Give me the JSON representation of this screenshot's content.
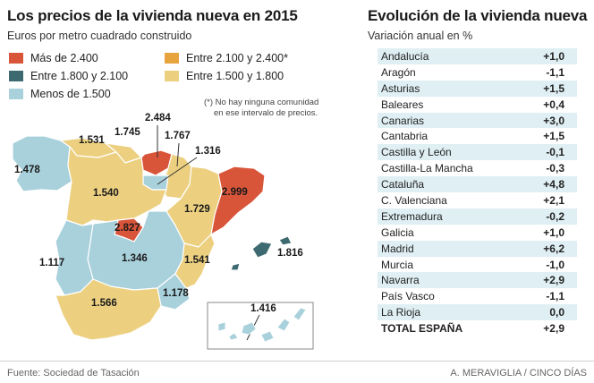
{
  "left": {
    "title": "Los precios de la vivienda nueva en 2015",
    "subtitle": "Euros por metro cuadrado construido",
    "legend": [
      {
        "label": "Más de 2.400",
        "color": "#d9553a"
      },
      {
        "label": "Entre 2.100 y 2.400*",
        "color": "#e6a33e"
      },
      {
        "label": "Entre 1.800 y 2.100",
        "color": "#3d6a70"
      },
      {
        "label": "Entre 1.500 y 1.800",
        "color": "#ecd080"
      },
      {
        "label": "Menos de 1.500",
        "color": "#a9d1dc"
      }
    ],
    "note_line1": "(*) No hay ninguna comunidad",
    "note_line2": "en ese intervalo de precios.",
    "map_labels": {
      "galicia": "1.478",
      "asturias": "1.531",
      "cantabria": "1.745",
      "pais_vasco": "2.484",
      "navarra": "1.767",
      "la_rioja": "1.316",
      "castilla_leon": "1.540",
      "aragon": "1.729",
      "cataluna": "2.999",
      "madrid": "2.827",
      "castilla_la_mancha": "1.346",
      "extremadura": "1.117",
      "valencia": "1.541",
      "baleares": "1.816",
      "murcia": "1.178",
      "andalucia": "1.566",
      "canarias": "1.416"
    }
  },
  "right": {
    "title": "Evolución de la vivienda nueva",
    "subtitle": "Variación anual en %",
    "rows": [
      {
        "name": "Andalucía",
        "value": "+1,0"
      },
      {
        "name": "Aragón",
        "value": "-1,1"
      },
      {
        "name": "Asturias",
        "value": "+1,5"
      },
      {
        "name": "Baleares",
        "value": "+0,4"
      },
      {
        "name": "Canarias",
        "value": "+3,0"
      },
      {
        "name": "Cantabria",
        "value": "+1,5"
      },
      {
        "name": "Castilla y León",
        "value": "-0,1"
      },
      {
        "name": "Castilla-La Mancha",
        "value": "-0,3"
      },
      {
        "name": "Cataluña",
        "value": "+4,8"
      },
      {
        "name": "C. Valenciana",
        "value": "+2,1"
      },
      {
        "name": "Extremadura",
        "value": "-0,2"
      },
      {
        "name": "Galicia",
        "value": "+1,0"
      },
      {
        "name": "Madrid",
        "value": "+6,2"
      },
      {
        "name": "Murcia",
        "value": "-1,0"
      },
      {
        "name": "Navarra",
        "value": "+2,9"
      },
      {
        "name": "País Vasco",
        "value": "-1,1"
      },
      {
        "name": "La Rioja",
        "value": "0,0"
      }
    ],
    "total": {
      "name": "TOTAL ESPAÑA",
      "value": "+2,9"
    }
  },
  "footer": {
    "source": "Fuente: Sociedad de Tasación",
    "credit": "A. MERAVIGLIA / CINCO DÍAS"
  }
}
